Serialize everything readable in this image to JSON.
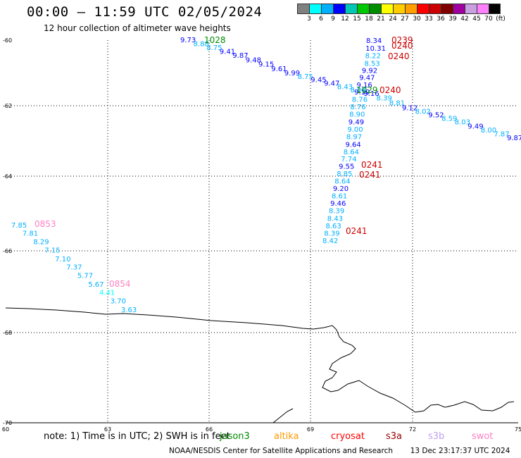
{
  "header": {
    "title": "00:00 – 11:59 UTC 02/05/2024",
    "subtitle": "12 hour collection of altimeter wave heights"
  },
  "color_legend": {
    "colors": [
      "#808080",
      "#00ffff",
      "#00b0ff",
      "#0000ff",
      "#00c8b4",
      "#00c800",
      "#008c00",
      "#ffff00",
      "#ffcc00",
      "#ffa000",
      "#ff0000",
      "#cc0000",
      "#800000",
      "#a000a0",
      "#c8a0e0",
      "#ff80ff",
      "#000000"
    ],
    "labels": [
      "3",
      "6",
      "9",
      "12",
      "15",
      "18",
      "21",
      "24",
      "27",
      "30",
      "33",
      "36",
      "39",
      "42",
      "45",
      "70",
      "(ft)"
    ]
  },
  "map": {
    "lat_labels": [
      "-60",
      "-62",
      "-64",
      "-66",
      "-68",
      "-70"
    ],
    "lon_labels": [
      "60",
      "63",
      "66",
      "69",
      "72",
      "75"
    ],
    "coastline_color": "#000000",
    "gridline_color": "#000000"
  },
  "tracks": {
    "track_a": {
      "color_note": "wave heights along track crossing 61-62S",
      "points": [
        {
          "v": "9.73",
          "c": "#0000ff"
        },
        {
          "v": "8.88",
          "c": "#00b0ff"
        },
        {
          "v": "8.75",
          "c": "#00b0ff"
        },
        {
          "v": "9.41",
          "c": "#0000ff"
        },
        {
          "v": "9.87",
          "c": "#0000ff"
        },
        {
          "v": "9.48",
          "c": "#0000ff"
        },
        {
          "v": "9.15",
          "c": "#0000ff"
        },
        {
          "v": "9.61",
          "c": "#0000ff"
        },
        {
          "v": "9.99",
          "c": "#0000ff"
        },
        {
          "v": "8.75",
          "c": "#00b0ff"
        },
        {
          "v": "9.45",
          "c": "#0000ff"
        },
        {
          "v": "9.47",
          "c": "#0000ff"
        },
        {
          "v": "8.43",
          "c": "#00b0ff"
        },
        {
          "v": "8.04",
          "c": "#00b0ff"
        },
        {
          "v": "9.16",
          "c": "#0000ff"
        },
        {
          "v": "8.39",
          "c": "#00b0ff"
        },
        {
          "v": "8.81",
          "c": "#00b0ff"
        },
        {
          "v": "9.12",
          "c": "#0000ff"
        },
        {
          "v": "8.02",
          "c": "#00b0ff"
        },
        {
          "v": "9.52",
          "c": "#0000ff"
        },
        {
          "v": "8.59",
          "c": "#00b0ff"
        },
        {
          "v": "8.03",
          "c": "#00b0ff"
        },
        {
          "v": "9.49",
          "c": "#0000ff"
        },
        {
          "v": "8.00",
          "c": "#00b0ff"
        },
        {
          "v": "7.87",
          "c": "#00b0ff"
        },
        {
          "v": "9.87",
          "c": "#0000ff"
        }
      ]
    },
    "track_b": {
      "points": [
        {
          "v": "8.34",
          "c": "#0000ff"
        },
        {
          "v": "10.31",
          "c": "#0000ff"
        },
        {
          "v": "8.22",
          "c": "#00b0ff"
        },
        {
          "v": "8.53",
          "c": "#00b0ff"
        },
        {
          "v": "9.92",
          "c": "#0000ff"
        },
        {
          "v": "9.47",
          "c": "#0000ff"
        },
        {
          "v": "9.16",
          "c": "#0000ff"
        },
        {
          "v": "9.10",
          "c": "#0000ff"
        },
        {
          "v": "8.76",
          "c": "#00b0ff"
        },
        {
          "v": "8.76",
          "c": "#00b0ff"
        },
        {
          "v": "8.90",
          "c": "#00b0ff"
        },
        {
          "v": "9.49",
          "c": "#0000ff"
        },
        {
          "v": "9.00",
          "c": "#00b0ff"
        },
        {
          "v": "8.97",
          "c": "#00b0ff"
        },
        {
          "v": "9.64",
          "c": "#0000ff"
        },
        {
          "v": "8.64",
          "c": "#00b0ff"
        },
        {
          "v": "7.74",
          "c": "#00b0ff"
        },
        {
          "v": "9.55",
          "c": "#0000ff"
        },
        {
          "v": "8.85",
          "c": "#00b0ff"
        },
        {
          "v": "8.64",
          "c": "#00b0ff"
        },
        {
          "v": "9.20",
          "c": "#0000ff"
        },
        {
          "v": "8.61",
          "c": "#00b0ff"
        },
        {
          "v": "9.46",
          "c": "#0000ff"
        },
        {
          "v": "8.39",
          "c": "#00b0ff"
        },
        {
          "v": "8.43",
          "c": "#00b0ff"
        },
        {
          "v": "8.63",
          "c": "#00b0ff"
        },
        {
          "v": "8.39",
          "c": "#00b0ff"
        },
        {
          "v": "8.42",
          "c": "#00b0ff"
        }
      ]
    },
    "track_c": {
      "points": [
        {
          "v": "7.85",
          "c": "#00b0ff"
        },
        {
          "v": "7.81",
          "c": "#00b0ff"
        },
        {
          "v": "8.29",
          "c": "#00b0ff"
        },
        {
          "v": "7.15",
          "c": "#00b0ff"
        },
        {
          "v": "7.10",
          "c": "#00b0ff"
        },
        {
          "v": "7.37",
          "c": "#00b0ff"
        },
        {
          "v": "5.77",
          "c": "#00b0ff"
        },
        {
          "v": "5.67",
          "c": "#00b0ff"
        },
        {
          "v": "4.41",
          "c": "#00ffff"
        },
        {
          "v": "3.70",
          "c": "#00b0ff"
        },
        {
          "v": "3.63",
          "c": "#00b0ff"
        }
      ]
    },
    "time_labels": [
      {
        "t": "1028",
        "c": "#008c00"
      },
      {
        "t": "0239",
        "c": "#cc0000"
      },
      {
        "t": "0240",
        "c": "#cc0000"
      },
      {
        "t": "0240",
        "c": "#cc0000"
      },
      {
        "t": "0240",
        "c": "#cc0000"
      },
      {
        "t": "1029",
        "c": "#008c00"
      },
      {
        "t": "0241",
        "c": "#cc0000"
      },
      {
        "t": "0241",
        "c": "#cc0000"
      },
      {
        "t": "0241",
        "c": "#cc0000"
      },
      {
        "t": "0853",
        "c": "#ff80c0"
      },
      {
        "t": "0854",
        "c": "#ff80c0"
      }
    ]
  },
  "footer": {
    "note": "note: 1) Time is in UTC; 2) SWH is in feet",
    "satellites": [
      {
        "name": "jason3",
        "color": "#008c00"
      },
      {
        "name": "altika",
        "color": "#ff9900"
      },
      {
        "name": "cryosat",
        "color": "#ff0000"
      },
      {
        "name": "s3a",
        "color": "#990000"
      },
      {
        "name": "s3b",
        "color": "#c0a0f0"
      },
      {
        "name": "swot",
        "color": "#ff80c0"
      }
    ],
    "credit": "NOAA/NESDIS Center for Satellite Applications and Research",
    "timestamp": "13 Dec 23:17:37 UTC 2024"
  }
}
